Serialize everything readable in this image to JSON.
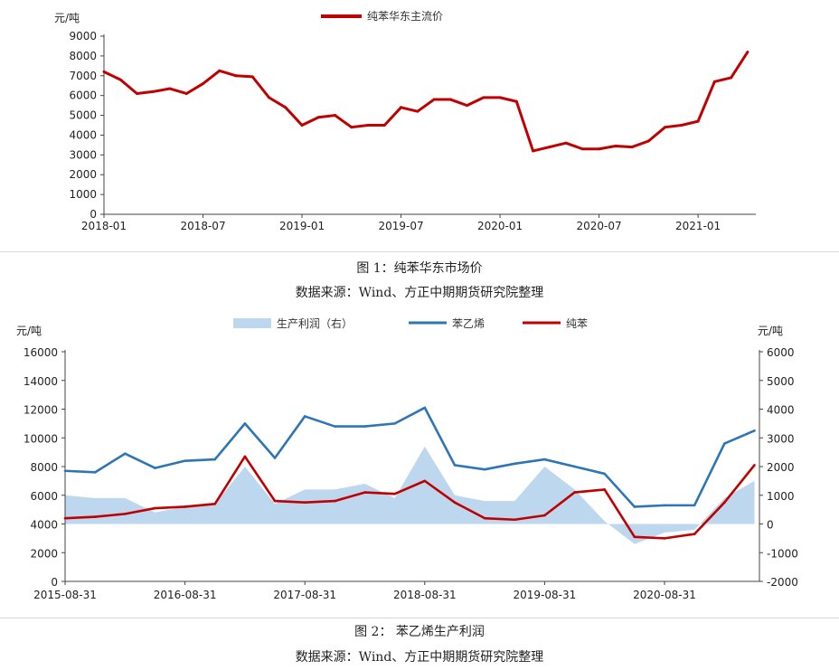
{
  "figure1": {
    "caption": "图 1：纯苯华东市场价",
    "source": "数据来源：Wind、方正中期期货研究院整理",
    "chart_data": {
      "type": "line",
      "y_unit": "元/吨",
      "ylim": [
        0,
        9000
      ],
      "yticks": [
        "0",
        "1000",
        "2000",
        "3000",
        "4000",
        "5000",
        "6000",
        "7000",
        "8000",
        "9000"
      ],
      "xticks": [
        "2018-01",
        "2018-07",
        "2019-01",
        "2019-07",
        "2020-01",
        "2020-07",
        "2021-01"
      ],
      "legend_position": "top-center",
      "colors": {
        "series": "#c00000"
      },
      "series": [
        {
          "name": "纯苯华东主流价",
          "x": [
            "2018-01",
            "2018-02",
            "2018-03",
            "2018-04",
            "2018-05",
            "2018-06",
            "2018-07",
            "2018-08",
            "2018-09",
            "2018-10",
            "2018-11",
            "2018-12",
            "2019-01",
            "2019-02",
            "2019-03",
            "2019-04",
            "2019-05",
            "2019-06",
            "2019-07",
            "2019-08",
            "2019-09",
            "2019-10",
            "2019-11",
            "2019-12",
            "2020-01",
            "2020-02",
            "2020-03",
            "2020-04",
            "2020-05",
            "2020-06",
            "2020-07",
            "2020-08",
            "2020-09",
            "2020-10",
            "2020-11",
            "2020-12",
            "2021-01",
            "2021-02",
            "2021-03",
            "2021-04"
          ],
          "values": [
            7200,
            6800,
            6100,
            6200,
            6350,
            6100,
            6600,
            7250,
            7000,
            6950,
            5900,
            5400,
            4500,
            4900,
            5000,
            4400,
            4500,
            4500,
            5400,
            5200,
            5800,
            5800,
            5500,
            5900,
            5900,
            5700,
            3200,
            3400,
            3600,
            3300,
            3300,
            3450,
            3400,
            3700,
            4400,
            4500,
            4700,
            6700,
            6900,
            8200
          ]
        }
      ]
    }
  },
  "figure2": {
    "caption": "图 2： 苯乙烯生产利润",
    "source": "数据来源：Wind、方正中期期货研究院整理",
    "chart_data": {
      "type": "line",
      "y_unit_left": "元/吨",
      "y_unit_right": "元/吨",
      "ylim_left": [
        0,
        16000
      ],
      "ylim_right": [
        -2000,
        6000
      ],
      "yticks_left": [
        "0",
        "2000",
        "4000",
        "6000",
        "8000",
        "10000",
        "12000",
        "14000",
        "16000"
      ],
      "yticks_right": [
        "-2000",
        "-1000",
        "0",
        "1000",
        "2000",
        "3000",
        "4000",
        "5000",
        "6000"
      ],
      "xticks": [
        "2015-08-31",
        "2016-08-31",
        "2017-08-31",
        "2018-08-31",
        "2019-08-31",
        "2020-08-31"
      ],
      "legend_position": "top-center",
      "colors": {
        "profit": "#bdd7ee",
        "styrene": "#2e75b6",
        "benzene": "#c00000"
      },
      "x": [
        "2015-08",
        "2015-11",
        "2016-02",
        "2016-05",
        "2016-08",
        "2016-11",
        "2017-02",
        "2017-05",
        "2017-08",
        "2017-11",
        "2018-02",
        "2018-05",
        "2018-08",
        "2018-11",
        "2019-02",
        "2019-05",
        "2019-08",
        "2019-11",
        "2020-02",
        "2020-05",
        "2020-08",
        "2020-11",
        "2021-02",
        "2021-05"
      ],
      "series": [
        {
          "name": "生产利润（右）",
          "type": "area",
          "axis": "right",
          "values": [
            1000,
            900,
            900,
            400,
            600,
            700,
            2000,
            700,
            1200,
            1200,
            1400,
            900,
            2700,
            1000,
            800,
            800,
            2000,
            1200,
            100,
            -700,
            -300,
            -200,
            900,
            1500
          ]
        },
        {
          "name": "苯乙烯",
          "type": "line",
          "axis": "left",
          "values": [
            7700,
            7600,
            8900,
            7900,
            8400,
            8500,
            11000,
            8600,
            11500,
            10800,
            10800,
            11000,
            12100,
            8100,
            7800,
            8200,
            8500,
            8000,
            7500,
            5200,
            5300,
            5300,
            9600,
            10500
          ]
        },
        {
          "name": "纯苯",
          "type": "line",
          "axis": "left",
          "values": [
            4400,
            4500,
            4700,
            5100,
            5200,
            5400,
            8700,
            5600,
            5500,
            5600,
            6200,
            6100,
            7000,
            5500,
            4400,
            4300,
            4600,
            6200,
            6400,
            3100,
            3000,
            3300,
            5500,
            8100
          ]
        }
      ]
    }
  }
}
